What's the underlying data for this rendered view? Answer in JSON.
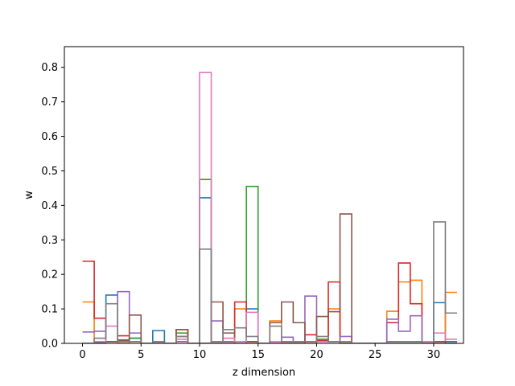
{
  "chart_data": {
    "type": "step",
    "title": "",
    "xlabel": "z dimension",
    "ylabel": "w",
    "xlim": [
      -1.55,
      32.55
    ],
    "ylim": [
      0,
      0.86
    ],
    "xticks": [
      0,
      5,
      10,
      15,
      20,
      25,
      30
    ],
    "yticks": [
      0.0,
      0.1,
      0.2,
      0.3,
      0.4,
      0.5,
      0.6,
      0.7,
      0.8
    ],
    "xtick_labels": [
      "0",
      "5",
      "10",
      "15",
      "20",
      "25",
      "30"
    ],
    "ytick_labels": [
      "0.0",
      "0.1",
      "0.2",
      "0.3",
      "0.4",
      "0.5",
      "0.6",
      "0.7",
      "0.8"
    ],
    "step_where": "post",
    "x": [
      0,
      1,
      2,
      3,
      4,
      5,
      6,
      7,
      8,
      9,
      10,
      11,
      12,
      13,
      14,
      15,
      16,
      17,
      18,
      19,
      20,
      21,
      22,
      23,
      24,
      25,
      26,
      27,
      28,
      29,
      30,
      31
    ],
    "series": [
      {
        "color": "#1f77b4",
        "values": [
          0,
          0.003,
          0.14,
          0.01,
          0.015,
          0,
          0.037,
          0,
          0.02,
          0,
          0.422,
          0.005,
          0.005,
          0.005,
          0.1,
          0,
          0.005,
          0.005,
          0.005,
          0.005,
          0.005,
          0.005,
          0,
          0,
          0,
          0,
          0.005,
          0.005,
          0.005,
          0,
          0.118,
          0.005
        ]
      },
      {
        "color": "#ff7f0e",
        "values": [
          0.12,
          0,
          0.005,
          0,
          0.005,
          0,
          0,
          0,
          0.005,
          0,
          0,
          0.005,
          0.005,
          0.1,
          0.005,
          0,
          0.065,
          0,
          0,
          0,
          0.005,
          0.1,
          0,
          0,
          0,
          0,
          0.093,
          0.178,
          0.183,
          0,
          0.005,
          0.148
        ]
      },
      {
        "color": "#2ca02c",
        "values": [
          0,
          0,
          0.005,
          0.005,
          0.015,
          0,
          0.005,
          0,
          0.03,
          0,
          0.475,
          0,
          0.005,
          0,
          0.455,
          0,
          0.005,
          0.005,
          0.005,
          0.005,
          0.012,
          0.005,
          0,
          0,
          0,
          0,
          0,
          0,
          0,
          0,
          0,
          0
        ]
      },
      {
        "color": "#d62728",
        "values": [
          0.238,
          0.073,
          0.005,
          0.022,
          0.005,
          0,
          0,
          0,
          0.04,
          0,
          0,
          0,
          0,
          0.12,
          0,
          0,
          0,
          0,
          0,
          0.025,
          0.008,
          0.178,
          0,
          0,
          0,
          0,
          0.06,
          0.233,
          0.115,
          0.005,
          0.005,
          0
        ]
      },
      {
        "color": "#9467bd",
        "values": [
          0.033,
          0.035,
          0.005,
          0.15,
          0.03,
          0,
          0.005,
          0,
          0.005,
          0,
          0,
          0.065,
          0.005,
          0.005,
          0.005,
          0,
          0.005,
          0.018,
          0.005,
          0.137,
          0.005,
          0.005,
          0.02,
          0,
          0,
          0,
          0.07,
          0.035,
          0.08,
          0.005,
          0,
          0
        ]
      },
      {
        "color": "#8c564b",
        "values": [
          0,
          0,
          0.005,
          0.008,
          0.082,
          0,
          0.005,
          0,
          0.04,
          0,
          0,
          0.12,
          0.03,
          0.005,
          0.005,
          0,
          0.06,
          0.12,
          0.06,
          0.005,
          0.078,
          0.092,
          0.375,
          0,
          0,
          0,
          0.005,
          0.005,
          0.005,
          0.005,
          0.005,
          0
        ]
      },
      {
        "color": "#e377c2",
        "values": [
          0,
          0.005,
          0.05,
          0.005,
          0.005,
          0,
          0,
          0,
          0.012,
          0,
          0.785,
          0,
          0.015,
          0.005,
          0.09,
          0,
          0.005,
          0.005,
          0.005,
          0.005,
          0.005,
          0.005,
          0.005,
          0,
          0,
          0,
          0.005,
          0.005,
          0.005,
          0.005,
          0.03,
          0.012
        ]
      },
      {
        "color": "#7f7f7f",
        "values": [
          0,
          0.015,
          0.115,
          0.005,
          0.005,
          0,
          0.005,
          0,
          0.02,
          0,
          0.273,
          0.005,
          0.04,
          0.045,
          0.02,
          0,
          0.05,
          0.005,
          0.005,
          0.005,
          0.02,
          0.005,
          0.005,
          0,
          0,
          0,
          0.005,
          0.005,
          0.005,
          0,
          0.352,
          0.088
        ]
      }
    ]
  }
}
